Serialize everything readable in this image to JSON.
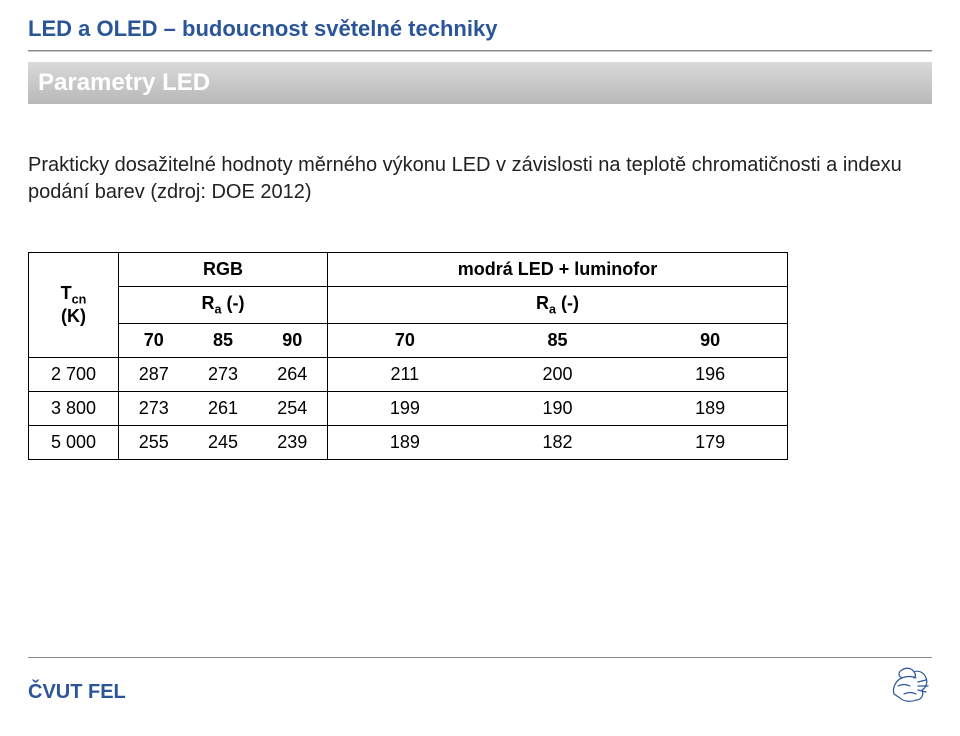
{
  "doc_title": "LED a OLED – budoucnost světelné techniky",
  "section_title": "Parametry LED",
  "body_text": "Prakticky dosažitelné hodnoty měrného výkonu LED v závislosti na teplotě chromatičnosti a indexu podání barev (zdroj: DOE 2012)",
  "table": {
    "row_header_html": "T<sub>cn</sub><br>(K)",
    "group_a": "RGB",
    "group_b": "modrá LED + luminofor",
    "sub_a_html": "R<sub>a</sub> (-)",
    "sub_b_html": "R<sub>a</sub> (-)",
    "cols_a": [
      "70",
      "85",
      "90"
    ],
    "cols_b": [
      "70",
      "85",
      "90"
    ],
    "rows": [
      {
        "k": "2 700",
        "a": [
          "287",
          "273",
          "264"
        ],
        "b": [
          "211",
          "200",
          "196"
        ]
      },
      {
        "k": "3 800",
        "a": [
          "273",
          "261",
          "254"
        ],
        "b": [
          "199",
          "190",
          "189"
        ]
      },
      {
        "k": "5 000",
        "a": [
          "255",
          "245",
          "239"
        ],
        "b": [
          "189",
          "182",
          "179"
        ]
      }
    ]
  },
  "footer_text": "ČVUT FEL",
  "colors": {
    "accent": "#2a5699",
    "section_text": "#ffffff",
    "page_bg": "#ffffff",
    "rule": "#8a8a8a"
  },
  "lion_color": "#2a5699"
}
